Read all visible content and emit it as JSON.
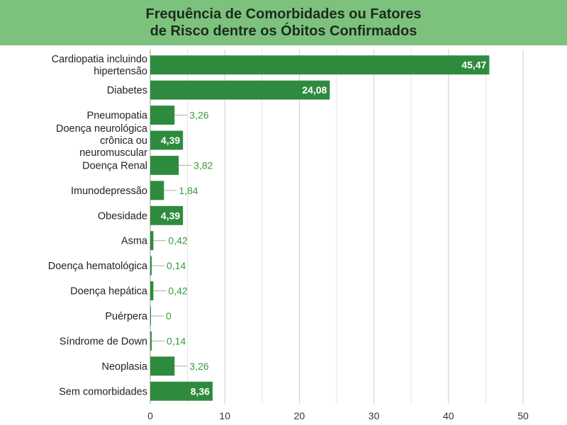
{
  "chart_data": {
    "type": "bar",
    "orientation": "horizontal",
    "title": "Frequência de Comorbidades ou Fatores\nde Risco dentre os Óbitos Confirmados",
    "xlabel": "",
    "ylabel": "",
    "xlim": [
      0,
      50
    ],
    "x_ticks": [
      "0",
      "10",
      "20",
      "30",
      "40",
      "50"
    ],
    "grid": true,
    "legend": "none",
    "categories": [
      "Cardiopatia incluindo\nhipertensão",
      "Diabetes",
      "Pneumopatia",
      "Doença neurológica\ncrônica ou\nneuromuscular",
      "Doença Renal",
      "Imunodepressão",
      "Obesidade",
      "Asma",
      "Doença hematológica",
      "Doença hepática",
      "Puérpera",
      "Síndrome de Down",
      "Neoplasia",
      "Sem comorbidades"
    ],
    "values": [
      45.47,
      24.08,
      3.26,
      4.39,
      3.82,
      1.84,
      4.39,
      0.42,
      0.14,
      0.42,
      0,
      0.14,
      3.26,
      8.36
    ],
    "value_labels": [
      "45,47",
      "24,08",
      "3,26",
      "4,39",
      "3,82",
      "1,84",
      "4,39",
      "0,42",
      "0,14",
      "0,42",
      "0",
      "0,14",
      "3,26",
      "8,36"
    ],
    "label_inside": [
      true,
      true,
      false,
      true,
      false,
      false,
      true,
      false,
      false,
      false,
      false,
      false,
      false,
      true
    ],
    "colors": {
      "bar": "#2e8b3e",
      "banner": "#7cc27c",
      "grid": "#cccccc",
      "outside_label": "#3a9a3a",
      "leader_line": "#aaaaaa"
    }
  }
}
